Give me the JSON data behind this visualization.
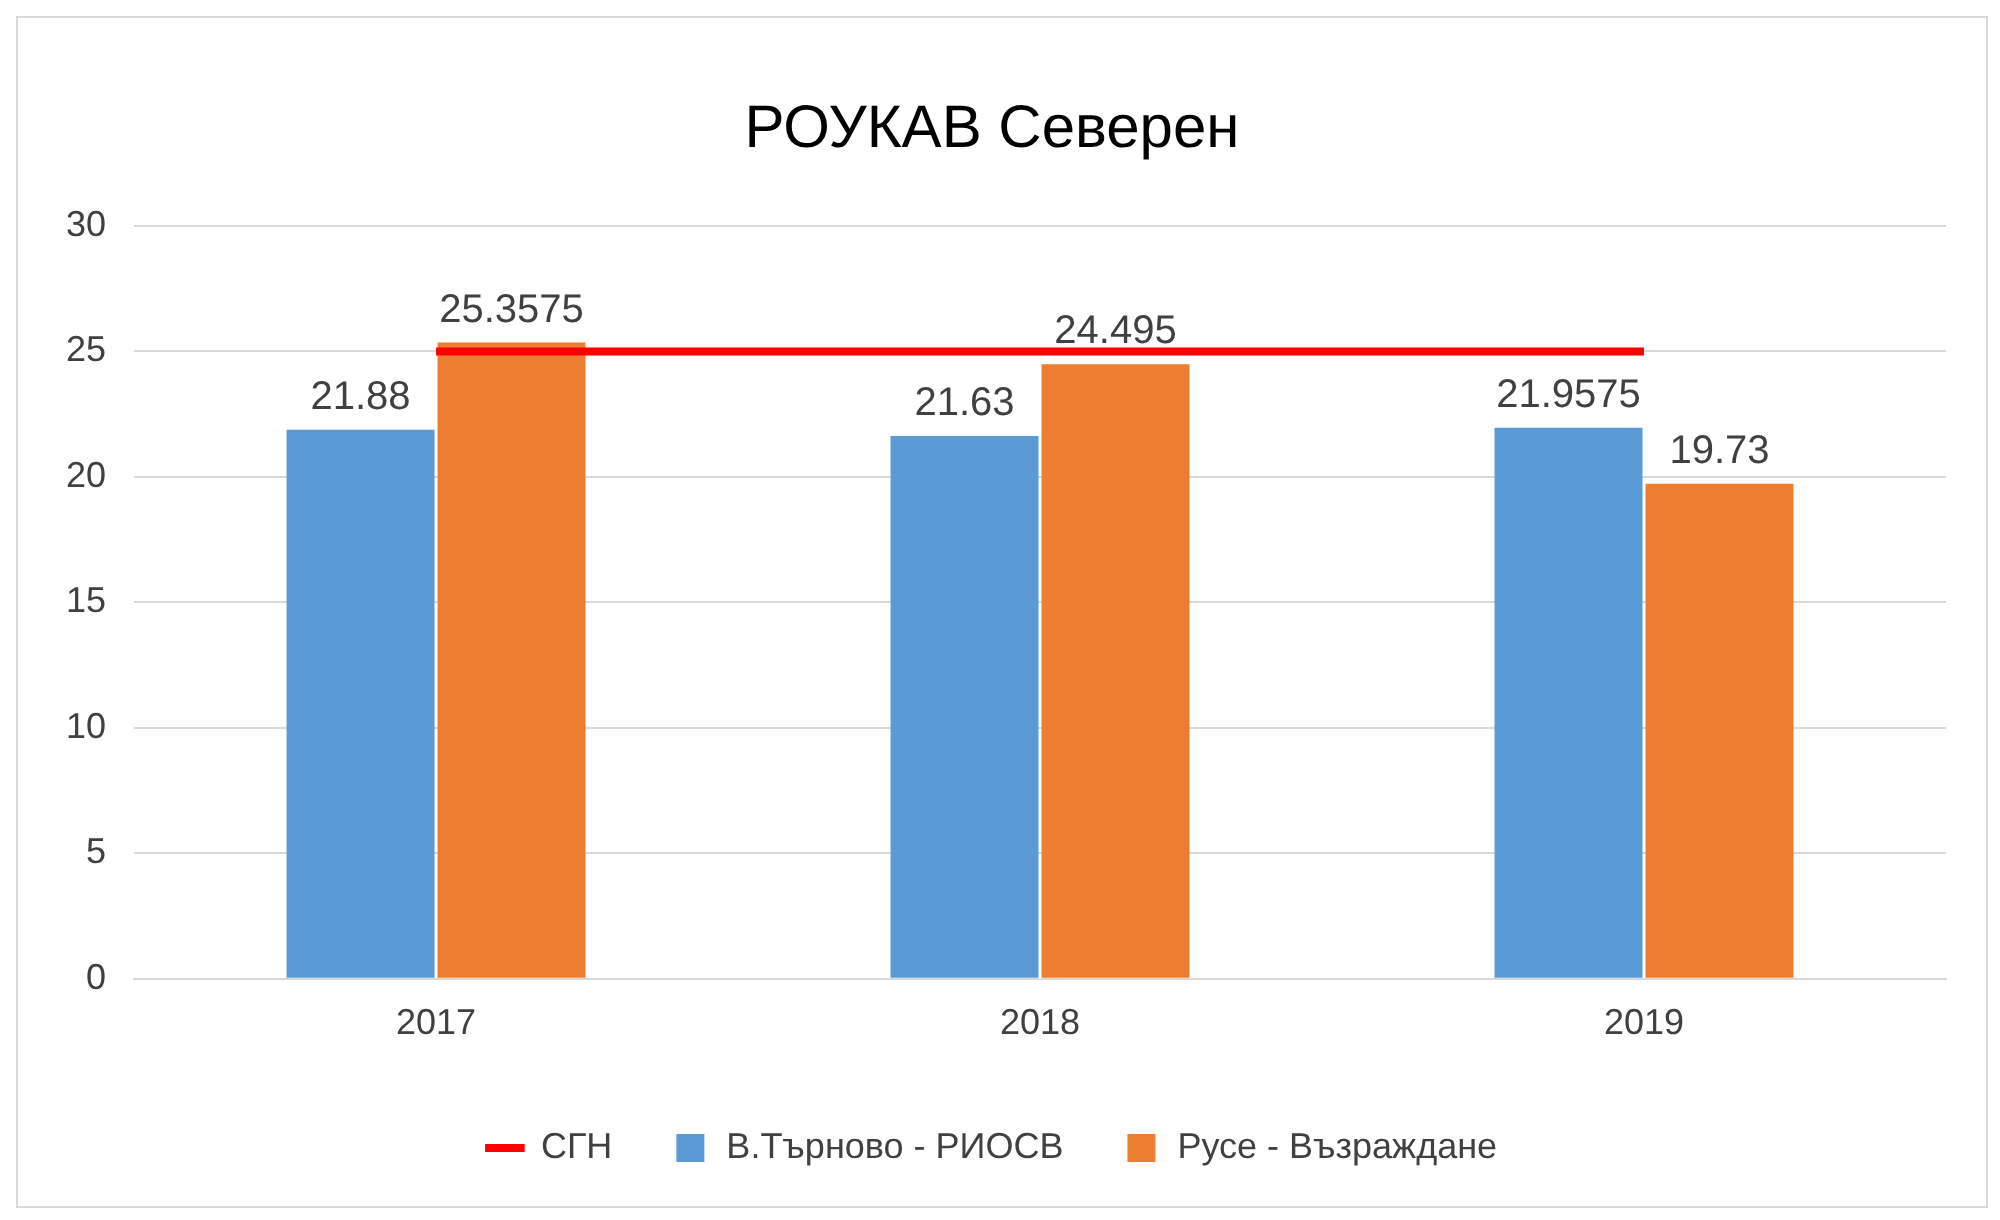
{
  "chart_data": {
    "type": "bar",
    "title": "РОУКАВ Северен",
    "categories": [
      "2017",
      "2018",
      "2019"
    ],
    "series": [
      {
        "name": "В.Търново - РИОСВ",
        "color": "#5b9bd5",
        "values": [
          21.88,
          21.63,
          21.9575
        ],
        "value_labels": [
          "21.88",
          "21.63",
          "21.9575"
        ]
      },
      {
        "name": "Русе - Възраждане",
        "color": "#ed7d31",
        "values": [
          25.3575,
          24.495,
          19.73
        ],
        "value_labels": [
          "25.3575",
          "24.495",
          "19.73"
        ]
      },
      {
        "name": "СГН",
        "type": "line",
        "color": "#ff0000",
        "values": [
          25,
          25,
          25
        ]
      }
    ],
    "ylim": [
      0,
      30
    ],
    "yticks": [
      0,
      5,
      10,
      15,
      20,
      25,
      30
    ],
    "grid": "y",
    "legend": "bottom",
    "marker": "none"
  }
}
